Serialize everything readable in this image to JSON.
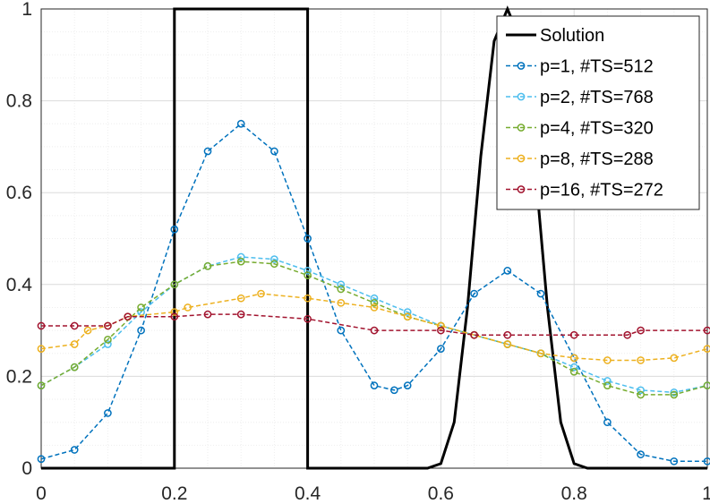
{
  "chart_data": {
    "type": "line",
    "xlim": [
      0,
      1
    ],
    "ylim": [
      0,
      1
    ],
    "x_ticks": [
      "0",
      "0.2",
      "0.4",
      "0.6",
      "0.8",
      "1"
    ],
    "y_ticks": [
      "0",
      "0.2",
      "0.4",
      "0.6",
      "0.8",
      "1"
    ],
    "grid": true,
    "legend_location": "top-right",
    "series": [
      {
        "name": "Solution",
        "color": "#000000",
        "marker": "none",
        "x": [
          0,
          0.2,
          0.2,
          0.4,
          0.4,
          0.58,
          0.6,
          0.62,
          0.64,
          0.66,
          0.68,
          0.7,
          0.72,
          0.74,
          0.76,
          0.78,
          0.8,
          0.82,
          1
        ],
        "y": [
          0,
          0,
          1,
          1,
          0,
          0,
          0.01,
          0.1,
          0.35,
          0.68,
          0.93,
          1,
          0.93,
          0.68,
          0.35,
          0.1,
          0.01,
          0,
          0
        ]
      },
      {
        "name": "p=1, #TS=512",
        "color": "#0072bd",
        "marker": "circle",
        "x": [
          0,
          0.05,
          0.1,
          0.15,
          0.2,
          0.25,
          0.3,
          0.35,
          0.4,
          0.45,
          0.5,
          0.53,
          0.55,
          0.6,
          0.65,
          0.7,
          0.75,
          0.8,
          0.85,
          0.9,
          0.95,
          1
        ],
        "y": [
          0.02,
          0.04,
          0.12,
          0.3,
          0.52,
          0.69,
          0.75,
          0.69,
          0.5,
          0.3,
          0.18,
          0.17,
          0.18,
          0.26,
          0.38,
          0.43,
          0.38,
          0.24,
          0.1,
          0.03,
          0.015,
          0.015
        ]
      },
      {
        "name": "p=2, #TS=768",
        "color": "#4dbeee",
        "marker": "circle",
        "x": [
          0,
          0.05,
          0.1,
          0.15,
          0.2,
          0.25,
          0.3,
          0.35,
          0.4,
          0.45,
          0.5,
          0.55,
          0.6,
          0.65,
          0.7,
          0.75,
          0.8,
          0.85,
          0.9,
          0.95,
          1
        ],
        "y": [
          0.18,
          0.22,
          0.27,
          0.34,
          0.4,
          0.44,
          0.46,
          0.455,
          0.43,
          0.4,
          0.37,
          0.34,
          0.31,
          0.29,
          0.27,
          0.25,
          0.22,
          0.19,
          0.17,
          0.165,
          0.18
        ]
      },
      {
        "name": "p=4, #TS=320",
        "color": "#77ac30",
        "marker": "circle",
        "x": [
          0,
          0.05,
          0.1,
          0.15,
          0.2,
          0.25,
          0.3,
          0.35,
          0.4,
          0.45,
          0.5,
          0.55,
          0.6,
          0.65,
          0.7,
          0.75,
          0.8,
          0.85,
          0.9,
          0.95,
          1
        ],
        "y": [
          0.18,
          0.22,
          0.28,
          0.35,
          0.4,
          0.44,
          0.45,
          0.445,
          0.42,
          0.39,
          0.36,
          0.33,
          0.31,
          0.29,
          0.27,
          0.25,
          0.21,
          0.18,
          0.16,
          0.16,
          0.18
        ]
      },
      {
        "name": "p=8, #TS=288",
        "color": "#edb120",
        "marker": "circle",
        "x": [
          0,
          0.05,
          0.07,
          0.1,
          0.13,
          0.2,
          0.22,
          0.3,
          0.33,
          0.4,
          0.45,
          0.5,
          0.55,
          0.6,
          0.65,
          0.7,
          0.75,
          0.8,
          0.85,
          0.9,
          0.95,
          1
        ],
        "y": [
          0.26,
          0.27,
          0.3,
          0.31,
          0.33,
          0.34,
          0.35,
          0.37,
          0.38,
          0.37,
          0.36,
          0.35,
          0.33,
          0.31,
          0.29,
          0.27,
          0.25,
          0.24,
          0.235,
          0.235,
          0.24,
          0.26
        ]
      },
      {
        "name": "p=16, #TS=272",
        "color": "#a2142f",
        "marker": "circle",
        "x": [
          0,
          0.05,
          0.1,
          0.13,
          0.2,
          0.25,
          0.3,
          0.4,
          0.5,
          0.6,
          0.65,
          0.7,
          0.8,
          0.88,
          0.9,
          1
        ],
        "y": [
          0.31,
          0.31,
          0.31,
          0.33,
          0.33,
          0.335,
          0.335,
          0.325,
          0.3,
          0.3,
          0.29,
          0.29,
          0.29,
          0.29,
          0.3,
          0.3
        ]
      }
    ]
  }
}
